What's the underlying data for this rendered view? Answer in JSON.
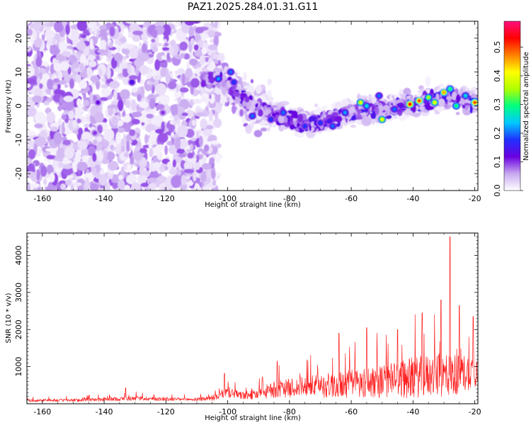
{
  "chart_data": [
    {
      "type": "heatmap",
      "title": "PAZ1.2025.284.01.31.G11",
      "xlabel": "Height of straight line (km)",
      "ylabel": "Frequency (Hz)",
      "xlim": [
        -165,
        -19
      ],
      "ylim": [
        -25,
        25
      ],
      "xticks": [
        -160,
        -140,
        -120,
        -100,
        -80,
        -60,
        -40,
        -20
      ],
      "yticks": [
        -20,
        -10,
        0,
        10,
        20
      ],
      "colorbar": {
        "label": "Normalized spectral amplitude",
        "range": [
          0,
          0.59
        ],
        "ticks": [
          0.0,
          0.1,
          0.2,
          0.3,
          0.4,
          0.5
        ],
        "tick_labels": [
          "0.0",
          "0.1",
          "0.2",
          "0.3",
          "0.4",
          "0.5"
        ],
        "colors": [
          "#ffffff",
          "#c8a8f0",
          "#6a00e0",
          "#2030ff",
          "#00c8ff",
          "#00ff80",
          "#b0ff00",
          "#ffff00",
          "#ff8000",
          "#ff0000",
          "#ff1080"
        ]
      },
      "centerline": {
        "x": [
          -108,
          -104,
          -100,
          -96,
          -92,
          -88,
          -84,
          -80,
          -76,
          -72,
          -68,
          -64,
          -60,
          -56,
          -52,
          -48,
          -44,
          -40,
          -36,
          -32,
          -28,
          -24,
          -20
        ],
        "y": [
          8,
          8,
          6,
          3,
          0.5,
          -1,
          -3,
          -4,
          -5,
          -5,
          -4,
          -3,
          -2,
          -1,
          -1,
          -1,
          0,
          0.5,
          1.5,
          2,
          3,
          2,
          1
        ]
      },
      "hotspots": [
        {
          "x": -103,
          "y": 8,
          "value": 0.22
        },
        {
          "x": -99,
          "y": 10,
          "value": 0.2
        },
        {
          "x": -98,
          "y": 7,
          "value": 0.18
        },
        {
          "x": -82,
          "y": -2,
          "value": 0.2
        },
        {
          "x": -70,
          "y": -5,
          "value": 0.18
        },
        {
          "x": -62,
          "y": -2,
          "value": 0.22
        },
        {
          "x": -57,
          "y": 1,
          "value": 0.4
        },
        {
          "x": -55,
          "y": 0,
          "value": 0.25
        },
        {
          "x": -51,
          "y": 3,
          "value": 0.2
        },
        {
          "x": -50,
          "y": -4,
          "value": 0.4
        },
        {
          "x": -46,
          "y": -1,
          "value": 0.2
        },
        {
          "x": -41,
          "y": 0.5,
          "value": 0.53
        },
        {
          "x": -38,
          "y": 1.5,
          "value": 0.5
        },
        {
          "x": -35,
          "y": 2.5,
          "value": 0.35
        },
        {
          "x": -33,
          "y": 1,
          "value": 0.4
        },
        {
          "x": -30,
          "y": 4,
          "value": 0.45
        },
        {
          "x": -28,
          "y": 5,
          "value": 0.3
        },
        {
          "x": -26,
          "y": 0,
          "value": 0.3
        },
        {
          "x": -23,
          "y": 3,
          "value": 0.25
        },
        {
          "x": -20,
          "y": 1,
          "value": 0.5
        },
        {
          "x": -131,
          "y": 7,
          "value": 0.15
        },
        {
          "x": -142,
          "y": 1,
          "value": 0.12
        },
        {
          "x": -121,
          "y": -2,
          "value": 0.1
        },
        {
          "x": -143,
          "y": -8,
          "value": 0.1
        },
        {
          "x": -92,
          "y": -3,
          "value": 0.2
        },
        {
          "x": -86,
          "y": -4,
          "value": 0.18
        },
        {
          "x": -75,
          "y": -6,
          "value": 0.18
        },
        {
          "x": -66,
          "y": -6,
          "value": 0.2
        }
      ]
    },
    {
      "type": "line",
      "xlabel": "Height of straight line (km)",
      "ylabel": "SNR (10 * v/v)",
      "xlim": [
        -165,
        -19
      ],
      "ylim": [
        0,
        4600
      ],
      "xticks": [
        -160,
        -140,
        -120,
        -100,
        -80,
        -60,
        -40,
        -20
      ],
      "yticks": [
        1000,
        2000,
        3000,
        4000
      ],
      "series": [
        {
          "name": "SNR",
          "color": "#ff2020",
          "x": [
            -165,
            -160,
            -150,
            -140,
            -130,
            -120,
            -110,
            -105,
            -100,
            -95,
            -90,
            -85,
            -80,
            -75,
            -70,
            -65,
            -60,
            -55,
            -50,
            -45,
            -40,
            -35,
            -30,
            -25,
            -20,
            -19
          ],
          "baseline": [
            80,
            90,
            90,
            110,
            140,
            120,
            110,
            150,
            300,
            200,
            250,
            350,
            400,
            430,
            450,
            470,
            500,
            530,
            560,
            600,
            650,
            700,
            700,
            750,
            850,
            900
          ],
          "spread": [
            70,
            70,
            80,
            100,
            120,
            100,
            90,
            150,
            300,
            200,
            300,
            450,
            500,
            550,
            650,
            700,
            800,
            850,
            900,
            1000,
            1100,
            1150,
            1200,
            1100,
            900,
            900
          ],
          "peaks": [
            {
              "x": -133,
              "y": 430
            },
            {
              "x": -101,
              "y": 820
            },
            {
              "x": -84,
              "y": 1150
            },
            {
              "x": -64,
              "y": 1900
            },
            {
              "x": -55,
              "y": 2050
            },
            {
              "x": -45,
              "y": 2000
            },
            {
              "x": -37,
              "y": 2450
            },
            {
              "x": -31,
              "y": 2800
            },
            {
              "x": -28,
              "y": 4500
            },
            {
              "x": -25,
              "y": 2650
            },
            {
              "x": -20.5,
              "y": 2350
            }
          ]
        }
      ]
    }
  ]
}
